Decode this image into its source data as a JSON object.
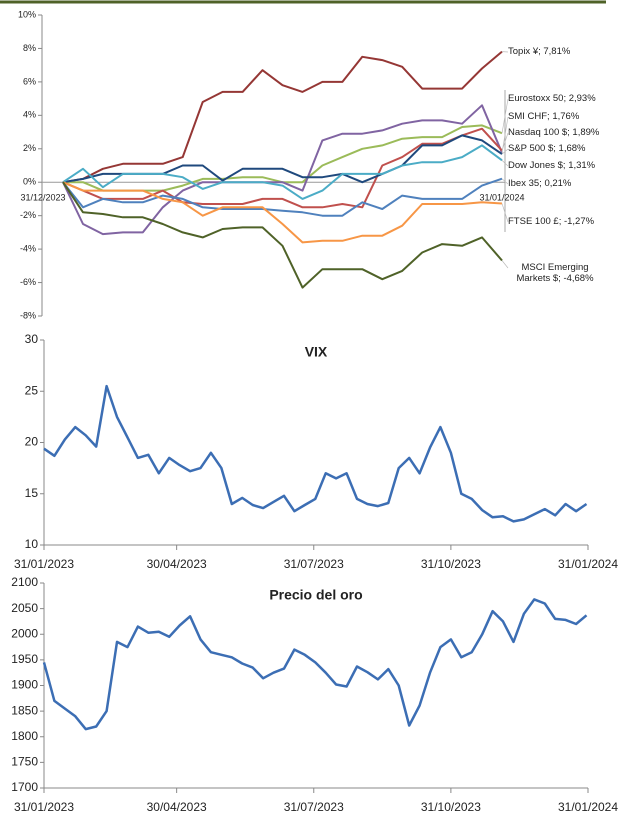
{
  "chart_data": [
    {
      "type": "line",
      "categories": [
        "31/12/2023",
        null,
        null,
        null,
        null,
        null,
        null,
        null,
        null,
        null,
        null,
        null,
        null,
        null,
        null,
        null,
        null,
        null,
        null,
        null,
        null,
        null,
        "31/01/2024"
      ],
      "series": [
        {
          "name": "Topix ¥; 7,81%",
          "color": "#953735",
          "values": [
            0,
            0.2,
            0.8,
            1.1,
            1.1,
            1.1,
            1.5,
            4.8,
            5.4,
            5.4,
            6.7,
            5.8,
            5.4,
            6.0,
            6.0,
            7.5,
            7.3,
            6.9,
            5.6,
            5.6,
            5.6,
            6.8,
            7.81
          ]
        },
        {
          "name": "Eurostoxx 50; 2,93%",
          "color": "#9bbb59",
          "values": [
            0,
            0,
            -0.5,
            -0.5,
            -0.5,
            -0.5,
            -0.2,
            0.2,
            0.2,
            0.3,
            0.3,
            0,
            0,
            1.0,
            1.5,
            2.0,
            2.2,
            2.6,
            2.7,
            2.7,
            3.3,
            3.4,
            2.93
          ]
        },
        {
          "name": "SMI CHF; 1,76%",
          "color": "#8064a2",
          "values": [
            0,
            -2.5,
            -3.1,
            -3.0,
            -3.0,
            -1.5,
            -0.5,
            0,
            0,
            0,
            0,
            0,
            -0.5,
            2.5,
            2.9,
            2.9,
            3.1,
            3.5,
            3.7,
            3.7,
            3.5,
            4.6,
            1.76
          ]
        },
        {
          "name": "Nasdaq 100 $; 1,89%",
          "color": "#c0504d",
          "values": [
            0,
            -0.5,
            -1.0,
            -1.0,
            -1.0,
            -0.5,
            -1.2,
            -1.3,
            -1.3,
            -1.3,
            -1.0,
            -1.0,
            -1.5,
            -1.5,
            -1.3,
            -1.5,
            1.0,
            1.5,
            2.3,
            2.3,
            2.8,
            3.2,
            1.89
          ]
        },
        {
          "name": "S&P 500 $; 1,68%",
          "color": "#1f497d",
          "values": [
            0,
            0.2,
            0.5,
            0.5,
            0.5,
            0.5,
            1.0,
            1.0,
            0.1,
            0.8,
            0.8,
            0.8,
            0.3,
            0.3,
            0.5,
            0,
            0.5,
            1.0,
            2.2,
            2.2,
            2.8,
            2.5,
            1.68
          ]
        },
        {
          "name": "Dow Jones $; 1,31%",
          "color": "#4bacc6",
          "values": [
            0,
            0.8,
            -0.3,
            0.5,
            0.5,
            0.5,
            0.3,
            -0.4,
            0,
            0,
            0,
            -0.2,
            -1.0,
            -0.5,
            0.5,
            0.5,
            0.5,
            1.0,
            1.2,
            1.2,
            1.5,
            2.2,
            1.31
          ]
        },
        {
          "name": "Ibex 35; 0,21%",
          "color": "#4f81bd",
          "values": [
            0,
            -1.5,
            -1.0,
            -1.2,
            -1.2,
            -0.8,
            -1.0,
            -1.5,
            -1.6,
            -1.6,
            -1.6,
            -1.7,
            -1.8,
            -2.0,
            -2.0,
            -1.2,
            -1.6,
            -0.8,
            -1.0,
            -1.0,
            -1.0,
            -0.2,
            0.21
          ]
        },
        {
          "name": "FTSE 100 £; -1,27%",
          "color": "#f79646",
          "values": [
            0,
            -0.5,
            -0.5,
            -0.5,
            -0.5,
            -1.0,
            -1.2,
            -2.0,
            -1.5,
            -1.5,
            -1.5,
            -2.5,
            -3.6,
            -3.5,
            -3.5,
            -3.2,
            -3.2,
            -2.6,
            -1.3,
            -1.3,
            -1.3,
            -1.2,
            -1.27
          ]
        },
        {
          "name": "MSCI Emerging Markets $; -4,68%",
          "color": "#4f6228",
          "values": [
            0,
            -1.8,
            -1.9,
            -2.1,
            -2.1,
            -2.5,
            -3.0,
            -3.3,
            -2.8,
            -2.7,
            -2.7,
            -3.8,
            -6.3,
            -5.2,
            -5.2,
            -5.2,
            -5.8,
            -5.3,
            -4.2,
            -3.7,
            -3.8,
            -3.3,
            -4.68
          ]
        }
      ],
      "ylim": [
        -8,
        10
      ],
      "yticks": [
        {
          "value": -8,
          "label": "-8%"
        },
        {
          "value": -6,
          "label": "-6%"
        },
        {
          "value": -4,
          "label": "-4%"
        },
        {
          "value": -2,
          "label": "-2%"
        },
        {
          "value": 0,
          "label": "0%"
        },
        {
          "value": 2,
          "label": "2%"
        },
        {
          "value": 4,
          "label": "4%"
        },
        {
          "value": 6,
          "label": "6%"
        },
        {
          "value": 8,
          "label": "8%"
        },
        {
          "value": 10,
          "label": "10%"
        }
      ]
    },
    {
      "type": "line",
      "title": "VIX",
      "x": [
        "31/01/2023",
        "07/02/2023",
        "14/02/2023",
        "21/02/2023",
        "28/02/2023",
        "07/03/2023",
        "14/03/2023",
        "21/03/2023",
        "28/03/2023",
        "04/04/2023",
        "11/04/2023",
        "18/04/2023",
        "25/04/2023",
        "02/05/2023",
        "09/05/2023",
        "16/05/2023",
        "23/05/2023",
        "30/05/2023",
        "06/06/2023",
        "13/06/2023",
        "20/06/2023",
        "27/06/2023",
        "04/07/2023",
        "11/07/2023",
        "18/07/2023",
        "25/07/2023",
        "01/08/2023",
        "08/08/2023",
        "15/08/2023",
        "22/08/2023",
        "29/08/2023",
        "05/09/2023",
        "12/09/2023",
        "19/09/2023",
        "26/09/2023",
        "03/10/2023",
        "10/10/2023",
        "17/10/2023",
        "24/10/2023",
        "31/10/2023",
        "07/11/2023",
        "14/11/2023",
        "21/11/2023",
        "28/11/2023",
        "05/12/2023",
        "12/12/2023",
        "19/12/2023",
        "26/12/2023",
        "02/01/2024",
        "09/01/2024",
        "16/01/2024",
        "23/01/2024",
        "30/01/2024"
      ],
      "series": [
        {
          "name": "VIX",
          "color": "#3c6eb4",
          "values": [
            19.4,
            18.7,
            20.3,
            21.5,
            20.7,
            19.6,
            25.5,
            22.5,
            20.5,
            18.5,
            18.8,
            17.0,
            18.5,
            17.8,
            17.2,
            17.5,
            19.0,
            17.5,
            14.0,
            14.6,
            13.9,
            13.6,
            14.2,
            14.8,
            13.3,
            13.9,
            14.5,
            17.0,
            16.5,
            17.0,
            14.5,
            14.0,
            13.8,
            14.1,
            17.5,
            18.5,
            17.0,
            19.5,
            21.5,
            19.0,
            15.0,
            14.5,
            13.4,
            12.7,
            12.8,
            12.3,
            12.5,
            13.0,
            13.5,
            12.9,
            14.0,
            13.3,
            14.0
          ]
        }
      ],
      "xlim": [
        "31/01/2023",
        "31/01/2024"
      ],
      "xticks": [
        "31/01/2023",
        "30/04/2023",
        "31/07/2023",
        "31/10/2023",
        "31/01/2024"
      ],
      "ylim": [
        10,
        30
      ],
      "yticks": [
        10,
        15,
        20,
        25,
        30
      ]
    },
    {
      "type": "line",
      "title": "Precio del oro",
      "x": [
        "31/01/2023",
        "07/02/2023",
        "14/02/2023",
        "21/02/2023",
        "28/02/2023",
        "07/03/2023",
        "14/03/2023",
        "21/03/2023",
        "28/03/2023",
        "04/04/2023",
        "11/04/2023",
        "18/04/2023",
        "25/04/2023",
        "02/05/2023",
        "09/05/2023",
        "16/05/2023",
        "23/05/2023",
        "30/05/2023",
        "06/06/2023",
        "13/06/2023",
        "20/06/2023",
        "27/06/2023",
        "04/07/2023",
        "11/07/2023",
        "18/07/2023",
        "25/07/2023",
        "01/08/2023",
        "08/08/2023",
        "15/08/2023",
        "22/08/2023",
        "29/08/2023",
        "05/09/2023",
        "12/09/2023",
        "19/09/2023",
        "26/09/2023",
        "03/10/2023",
        "10/10/2023",
        "17/10/2023",
        "24/10/2023",
        "31/10/2023",
        "07/11/2023",
        "14/11/2023",
        "21/11/2023",
        "28/11/2023",
        "05/12/2023",
        "12/12/2023",
        "19/12/2023",
        "26/12/2023",
        "02/01/2024",
        "09/01/2024",
        "16/01/2024",
        "23/01/2024",
        "30/01/2024"
      ],
      "series": [
        {
          "name": "Precio del oro",
          "color": "#3c6eb4",
          "values": [
            1945,
            1870,
            1855,
            1840,
            1815,
            1820,
            1850,
            1985,
            1975,
            2015,
            2003,
            2005,
            1995,
            2017,
            2035,
            1990,
            1965,
            1960,
            1955,
            1943,
            1935,
            1914,
            1925,
            1933,
            1970,
            1960,
            1945,
            1925,
            1902,
            1898,
            1937,
            1926,
            1912,
            1932,
            1900,
            1822,
            1861,
            1925,
            1975,
            1990,
            1955,
            1965,
            2000,
            2045,
            2025,
            1985,
            2040,
            2068,
            2060,
            2030,
            2028,
            2020,
            2037
          ]
        }
      ],
      "xlim": [
        "31/01/2023",
        "31/01/2024"
      ],
      "xticks": [
        "31/01/2023",
        "30/04/2023",
        "31/07/2023",
        "31/10/2023",
        "31/01/2024"
      ],
      "ylim": [
        1700,
        2100
      ],
      "yticks": [
        1700,
        1750,
        1800,
        1850,
        1900,
        1950,
        2000,
        2050,
        2100
      ]
    }
  ]
}
